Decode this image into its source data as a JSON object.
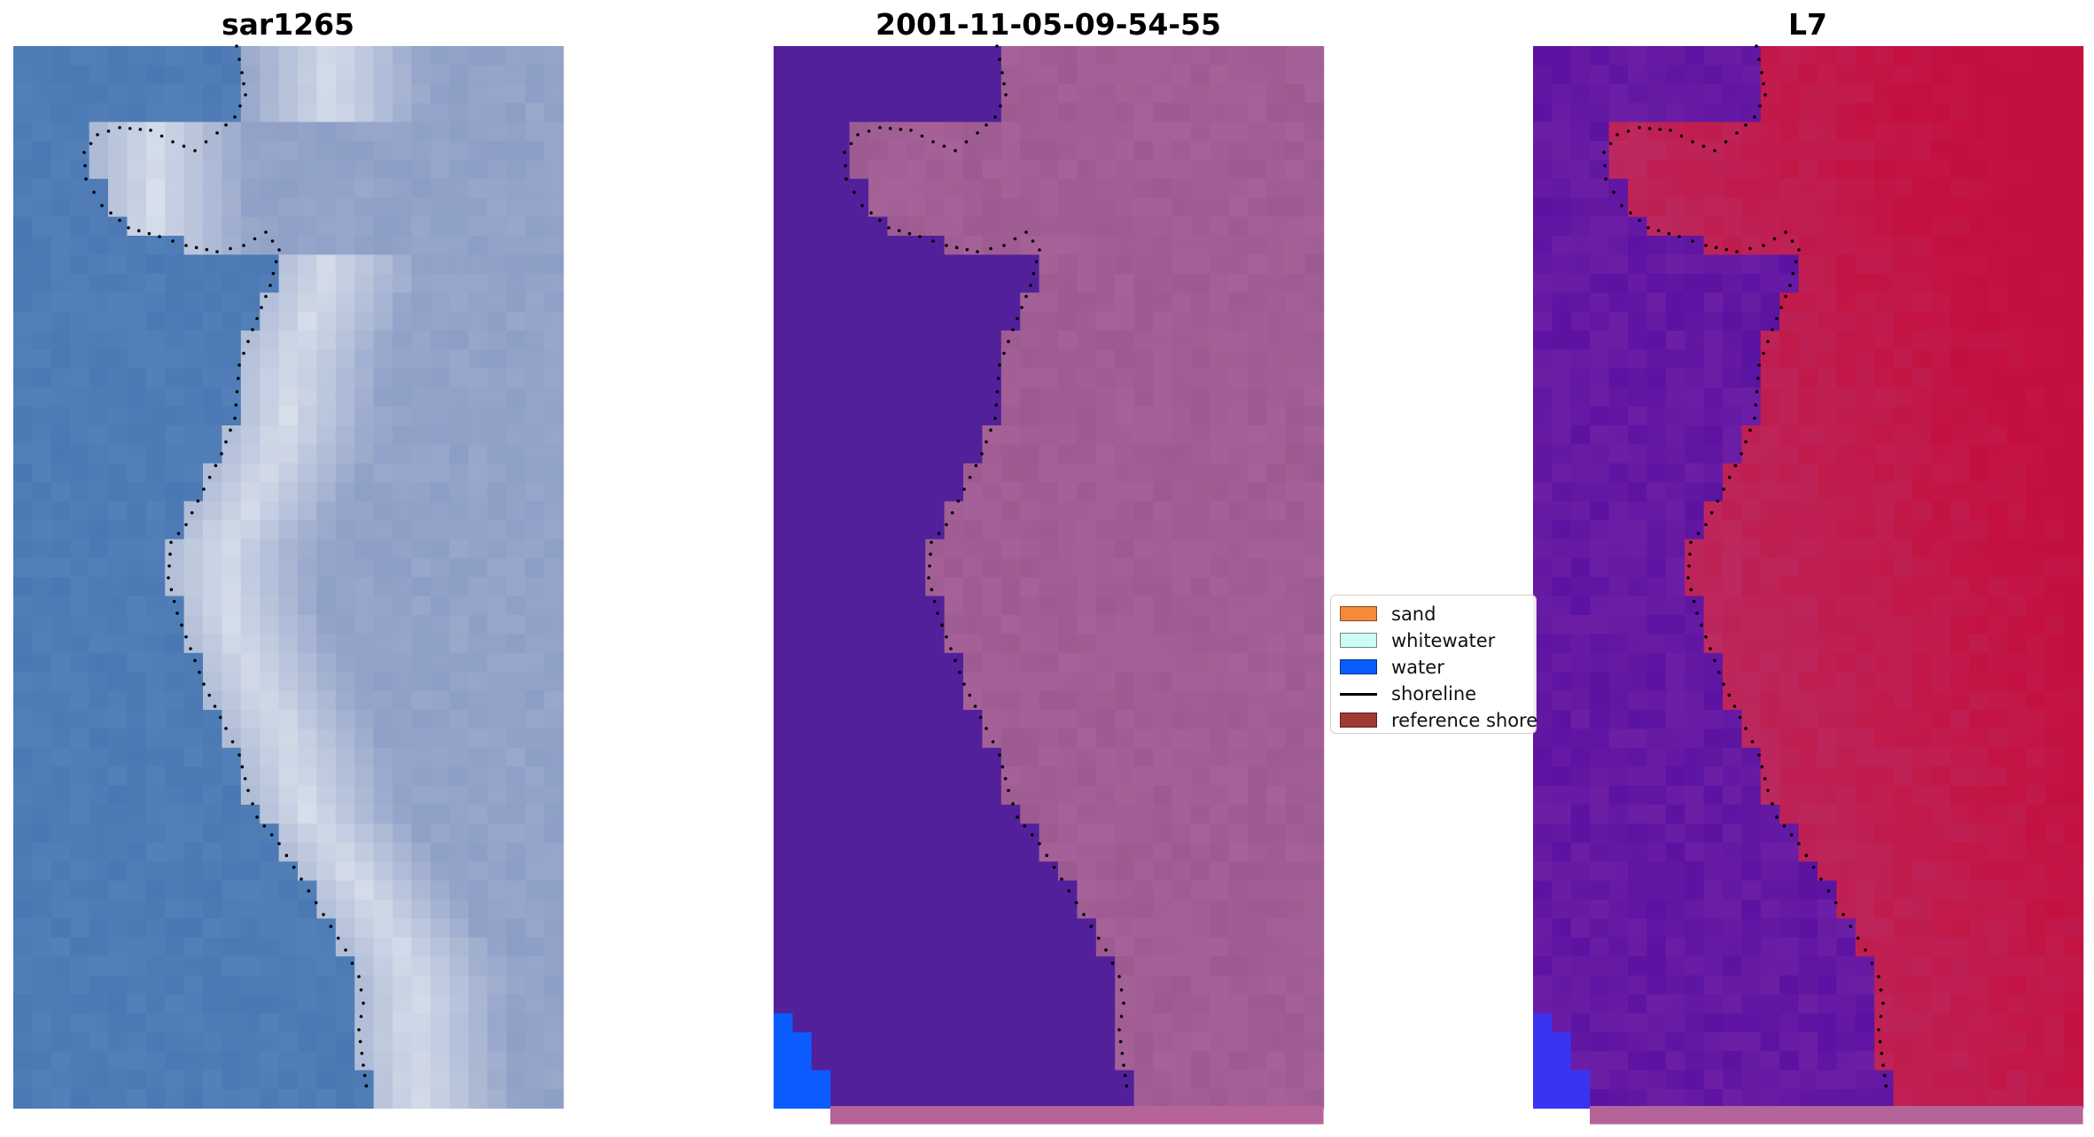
{
  "panels": [
    {
      "title": "sar1265"
    },
    {
      "title": "2001-11-05-09-54-55"
    },
    {
      "title": "L7"
    }
  ],
  "legend": {
    "items": [
      {
        "label": "sand",
        "color": "#f58a38",
        "type": "patch"
      },
      {
        "label": "whitewater",
        "color": "#ccfbf8",
        "type": "patch"
      },
      {
        "label": "water",
        "color": "#0a5cff",
        "type": "patch"
      },
      {
        "label": "shoreline",
        "color": "#000000",
        "type": "line"
      },
      {
        "label": "reference shore",
        "color": "#a13a35",
        "type": "patch"
      }
    ]
  },
  "colors": {
    "water_class": "#52209a",
    "land_class": "#9c5a90",
    "water_blue": "#0a5cff",
    "rgb_ocean": "#4a78b4",
    "rgb_surf": "#dfe6ef",
    "index_low": "#5c12a2",
    "index_high": "#c4103e"
  }
}
